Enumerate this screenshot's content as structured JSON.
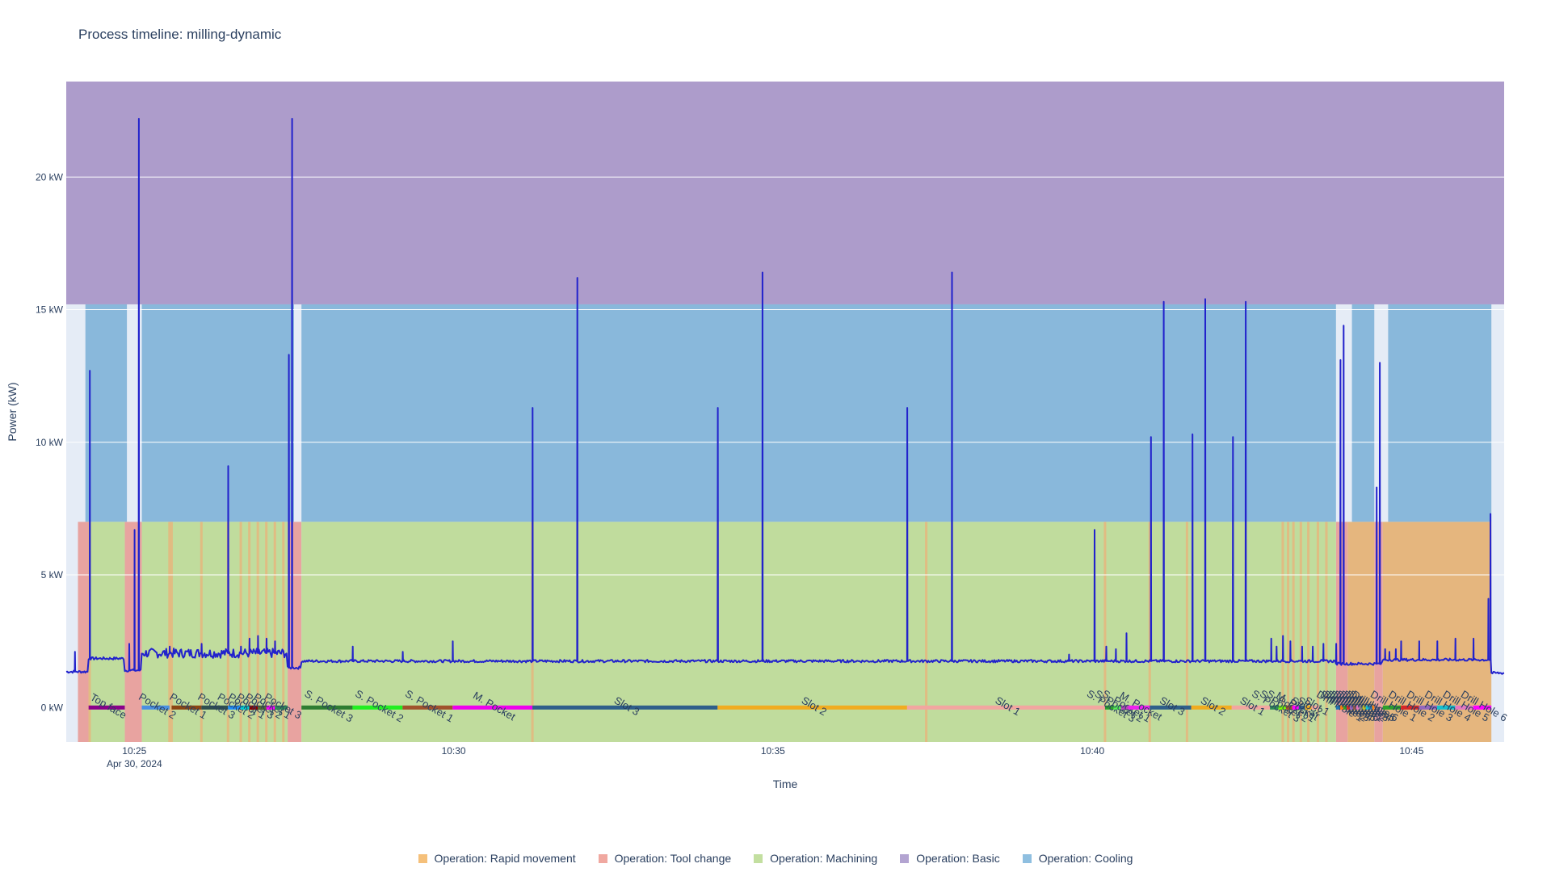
{
  "chart_data": {
    "type": "line",
    "title": "Process timeline: milling-dynamic",
    "xlabel": "Time",
    "ylabel": "Power (kW)",
    "x_start": "2024-04-30 10:23:56",
    "x_end": "2024-04-30 10:46:27",
    "xlim": [
      "2024-04-30 10:23:56",
      "2024-04-30 10:46:27"
    ],
    "ylim": [
      -1.3,
      23.6
    ],
    "x_ticks": [
      {
        "time": "2024-04-30 10:25:00",
        "label": "10:25",
        "sublabel": "Apr 30, 2024"
      },
      {
        "time": "2024-04-30 10:30:00",
        "label": "10:30"
      },
      {
        "time": "2024-04-30 10:35:00",
        "label": "10:35"
      },
      {
        "time": "2024-04-30 10:40:00",
        "label": "10:40"
      },
      {
        "time": "2024-04-30 10:45:00",
        "label": "10:45"
      }
    ],
    "y_ticks": [
      {
        "value": 0,
        "label": "0 kW"
      },
      {
        "value": 5,
        "label": "5 kW"
      },
      {
        "value": 10,
        "label": "10 kW"
      },
      {
        "value": 15,
        "label": "15 kW"
      },
      {
        "value": 20,
        "label": "20 kW"
      }
    ],
    "grid": true,
    "legend_position": "bottom",
    "legend": [
      {
        "label": "Operation: Rapid movement",
        "color": "#f5c07a"
      },
      {
        "label": "Operation: Tool change",
        "color": "#f0a8a0"
      },
      {
        "label": "Operation: Machining",
        "color": "#c3dfa0"
      },
      {
        "label": "Operation: Basic",
        "color": "#b3a4d1"
      },
      {
        "label": "Operation: Cooling",
        "color": "#8fbfe0"
      }
    ],
    "colors": {
      "plot_bg": "#e5ecf6",
      "basic": "#ad9ccb",
      "cooling": "#89b8db",
      "machining": "#c0dc9d",
      "tool_change": "#e8a3a0",
      "rapid_movement": "#e5b67e",
      "power_line": "#2222cc"
    },
    "bands": [
      {
        "operation": "Basic",
        "y0": 15.2,
        "y1": 23.6,
        "x0": "2024-04-30 10:23:56",
        "x1": "2024-04-30 10:46:27"
      },
      {
        "operation": "Cooling",
        "y0": 7.0,
        "y1": 15.2,
        "x0": "2024-04-30 10:24:14",
        "x1": "2024-04-30 10:24:53"
      },
      {
        "operation": "Cooling",
        "y0": 7.0,
        "y1": 15.2,
        "x0": "2024-04-30 10:25:07",
        "x1": "2024-04-30 10:27:30"
      },
      {
        "operation": "Cooling",
        "y0": 7.0,
        "y1": 15.2,
        "x0": "2024-04-30 10:27:37",
        "x1": "2024-04-30 10:43:49"
      },
      {
        "operation": "Cooling",
        "y0": 7.0,
        "y1": 15.2,
        "x0": "2024-04-30 10:44:04",
        "x1": "2024-04-30 10:44:25"
      },
      {
        "operation": "Cooling",
        "y0": 7.0,
        "y1": 15.2,
        "x0": "2024-04-30 10:44:38",
        "x1": "2024-04-30 10:46:15"
      },
      {
        "operation": "Tool change",
        "y0": -1.3,
        "y1": 7.0,
        "x0": "2024-04-30 10:24:07",
        "x1": "2024-04-30 10:24:17"
      },
      {
        "operation": "Tool change",
        "y0": -1.3,
        "y1": 7.0,
        "x0": "2024-04-30 10:24:51",
        "x1": "2024-04-30 10:25:07"
      },
      {
        "operation": "Tool change",
        "y0": -1.3,
        "y1": 7.0,
        "x0": "2024-04-30 10:27:24",
        "x1": "2024-04-30 10:27:37"
      },
      {
        "operation": "Tool change",
        "y0": -1.3,
        "y1": 7.0,
        "x0": "2024-04-30 10:43:49",
        "x1": "2024-04-30 10:44:00"
      },
      {
        "operation": "Tool change",
        "y0": -1.3,
        "y1": 7.0,
        "x0": "2024-04-30 10:44:25",
        "x1": "2024-04-30 10:44:33"
      },
      {
        "operation": "Machining",
        "y0": -1.3,
        "y1": 7.0,
        "x0": "2024-04-30 10:24:17",
        "x1": "2024-04-30 10:24:51"
      },
      {
        "operation": "Machining",
        "y0": -1.3,
        "y1": 7.0,
        "x0": "2024-04-30 10:25:07",
        "x1": "2024-04-30 10:27:24"
      },
      {
        "operation": "Machining",
        "y0": -1.3,
        "y1": 7.0,
        "x0": "2024-04-30 10:27:37",
        "x1": "2024-04-30 10:43:49"
      },
      {
        "operation": "Rapid movement",
        "y0": -1.3,
        "y1": 7.0,
        "x0": "2024-04-30 10:44:00",
        "x1": "2024-04-30 10:44:25"
      },
      {
        "operation": "Rapid movement",
        "y0": -1.3,
        "y1": 7.0,
        "x0": "2024-04-30 10:44:33",
        "x1": "2024-04-30 10:46:15"
      }
    ],
    "rapid_movement_times": [
      "2024-04-30 10:24:18",
      "2024-04-30 10:25:33",
      "2024-04-30 10:25:35",
      "2024-04-30 10:26:03",
      "2024-04-30 10:26:28",
      "2024-04-30 10:26:40",
      "2024-04-30 10:26:48",
      "2024-04-30 10:26:56",
      "2024-04-30 10:27:04",
      "2024-04-30 10:27:12",
      "2024-04-30 10:27:20",
      "2024-04-30 10:31:14",
      "2024-04-30 10:37:24",
      "2024-04-30 10:40:12",
      "2024-04-30 10:40:54",
      "2024-04-30 10:41:29",
      "2024-04-30 10:42:59",
      "2024-04-30 10:43:04",
      "2024-04-30 10:43:09",
      "2024-04-30 10:43:16",
      "2024-04-30 10:43:23",
      "2024-04-30 10:43:32",
      "2024-04-30 10:43:40"
    ],
    "segments": [
      {
        "label": "Top face",
        "x0": "2024-04-30 10:24:17",
        "x1": "2024-04-30 10:24:51",
        "color": "#8b008b"
      },
      {
        "label": "Pocket 2",
        "x0": "2024-04-30 10:25:07",
        "x1": "2024-04-30 10:25:33",
        "color": "#4a90e2"
      },
      {
        "label": "Pocket 1",
        "x0": "2024-04-30 10:25:35",
        "x1": "2024-04-30 10:26:03",
        "color": "#8b4513"
      },
      {
        "label": "Pocket 3",
        "x0": "2024-04-30 10:26:03",
        "x1": "2024-04-30 10:26:28",
        "color": "#2f4f4f"
      },
      {
        "label": "Pocket 2",
        "x0": "2024-04-30 10:26:28",
        "x1": "2024-04-30 10:26:40",
        "color": "#1e90ff"
      },
      {
        "label": "Pocket 1",
        "x0": "2024-04-30 10:26:40",
        "x1": "2024-04-30 10:26:48",
        "color": "#00ced1"
      },
      {
        "label": "Pocket 3",
        "x0": "2024-04-30 10:26:48",
        "x1": "2024-04-30 10:26:56",
        "color": "#8b0000"
      },
      {
        "label": "Pocket 2",
        "x0": "2024-04-30 10:26:56",
        "x1": "2024-04-30 10:27:04",
        "color": "#556b2f"
      },
      {
        "label": "Pocket 1",
        "x0": "2024-04-30 10:27:04",
        "x1": "2024-04-30 10:27:12",
        "color": "#ff00ff"
      },
      {
        "label": "Pocket 3",
        "x0": "2024-04-30 10:27:12",
        "x1": "2024-04-30 10:27:24",
        "color": "#2e8b57"
      },
      {
        "label": "S. Pocket 3",
        "x0": "2024-04-30 10:27:37",
        "x1": "2024-04-30 10:28:25",
        "color": "#2e7d32"
      },
      {
        "label": "S. Pocket 2",
        "x0": "2024-04-30 10:28:25",
        "x1": "2024-04-30 10:29:12",
        "color": "#22ee22"
      },
      {
        "label": "S. Pocket 1",
        "x0": "2024-04-30 10:29:12",
        "x1": "2024-04-30 10:29:59",
        "color": "#a0522d"
      },
      {
        "label": "M. Pocket",
        "x0": "2024-04-30 10:29:59",
        "x1": "2024-04-30 10:31:14",
        "color": "#ee00ee"
      },
      {
        "label": "Slot 3",
        "x0": "2024-04-30 10:31:14",
        "x1": "2024-04-30 10:34:08",
        "color": "#2f5f8a"
      },
      {
        "label": "Slot 2",
        "x0": "2024-04-30 10:34:08",
        "x1": "2024-04-30 10:37:06",
        "color": "#f0ac20"
      },
      {
        "label": "Slot 1",
        "x0": "2024-04-30 10:37:06",
        "x1": "2024-04-30 10:40:12",
        "color": "#f2a6a0"
      },
      {
        "label": "S. Pocket 3",
        "x0": "2024-04-30 10:40:12",
        "x1": "2024-04-30 10:40:20",
        "color": "#2ca02c"
      },
      {
        "label": "S. Pocket 2",
        "x0": "2024-04-30 10:40:20",
        "x1": "2024-04-30 10:40:27",
        "color": "#55ee55"
      },
      {
        "label": "S. Pocket 1",
        "x0": "2024-04-30 10:40:27",
        "x1": "2024-04-30 10:40:34",
        "color": "#bb44bb"
      },
      {
        "label": "M. Pocket",
        "x0": "2024-04-30 10:40:34",
        "x1": "2024-04-30 10:40:54",
        "color": "#ee22ee"
      },
      {
        "label": "Slot 3",
        "x0": "2024-04-30 10:40:54",
        "x1": "2024-04-30 10:41:33",
        "color": "#2f5f8a"
      },
      {
        "label": "Slot 2",
        "x0": "2024-04-30 10:41:33",
        "x1": "2024-04-30 10:42:11",
        "color": "#f0ac20"
      },
      {
        "label": "Slot 1",
        "x0": "2024-04-30 10:42:11",
        "x1": "2024-04-30 10:42:47",
        "color": "#f2a6a0"
      },
      {
        "label": "S. Pocket 3",
        "x0": "2024-04-30 10:42:47",
        "x1": "2024-04-30 10:42:55",
        "color": "#2e8b57"
      },
      {
        "label": "S. Pocket 2",
        "x0": "2024-04-30 10:42:55",
        "x1": "2024-04-30 10:43:02",
        "color": "#7cfc00"
      },
      {
        "label": "S. Pocket 1",
        "x0": "2024-04-30 10:43:02",
        "x1": "2024-04-30 10:43:08",
        "color": "#a0522d"
      },
      {
        "label": "M. Pocket",
        "x0": "2024-04-30 10:43:08",
        "x1": "2024-04-30 10:43:14",
        "color": "#ff00ff"
      },
      {
        "label": "Slot 3",
        "x0": "2024-04-30 10:43:14",
        "x1": "2024-04-30 10:43:20",
        "color": "#2f5f8a"
      },
      {
        "label": "Slot 2",
        "x0": "2024-04-30 10:43:20",
        "x1": "2024-04-30 10:43:26",
        "color": "#f0ac20"
      },
      {
        "label": "Slot 1",
        "x0": "2024-04-30 10:43:26",
        "x1": "2024-04-30 10:43:33",
        "color": "#f2a6a0"
      },
      {
        "label": "Drill Hole 1",
        "x0": "2024-04-30 10:43:49",
        "x1": "2024-04-30 10:43:53",
        "color": "#1f77b4"
      },
      {
        "label": "Drill Hole 2",
        "x0": "2024-04-30 10:43:53",
        "x1": "2024-04-30 10:43:56",
        "color": "#ff7f0e"
      },
      {
        "label": "Drill Hole 3",
        "x0": "2024-04-30 10:43:56",
        "x1": "2024-04-30 10:43:59",
        "color": "#2ca02c"
      },
      {
        "label": "Drill Hole 4",
        "x0": "2024-04-30 10:43:59",
        "x1": "2024-04-30 10:44:02",
        "color": "#d62728"
      },
      {
        "label": "Drill Hole 5",
        "x0": "2024-04-30 10:44:02",
        "x1": "2024-04-30 10:44:05",
        "color": "#9467bd"
      },
      {
        "label": "Drill Hole 6",
        "x0": "2024-04-30 10:44:05",
        "x1": "2024-04-30 10:44:08",
        "color": "#8c564b"
      },
      {
        "label": "Drill Hole 1",
        "x0": "2024-04-30 10:44:08",
        "x1": "2024-04-30 10:44:11",
        "color": "#e377c2"
      },
      {
        "label": "Drill Hole 2",
        "x0": "2024-04-30 10:44:11",
        "x1": "2024-04-30 10:44:14",
        "color": "#7f7f7f"
      },
      {
        "label": "Drill Hole 3",
        "x0": "2024-04-30 10:44:14",
        "x1": "2024-04-30 10:44:17",
        "color": "#bcbd22"
      },
      {
        "label": "Drill Hole 4",
        "x0": "2024-04-30 10:44:17",
        "x1": "2024-04-30 10:44:20",
        "color": "#17becf"
      },
      {
        "label": "Drill Hole 5",
        "x0": "2024-04-30 10:44:20",
        "x1": "2024-04-30 10:44:23",
        "color": "#1f77b4"
      },
      {
        "label": "Drill Hole 6",
        "x0": "2024-04-30 10:44:23",
        "x1": "2024-04-30 10:44:25",
        "color": "#ff7f0e"
      },
      {
        "label": "Drill Hole 1",
        "x0": "2024-04-30 10:44:33",
        "x1": "2024-04-30 10:44:50",
        "color": "#2ca02c"
      },
      {
        "label": "Drill Hole 2",
        "x0": "2024-04-30 10:44:50",
        "x1": "2024-04-30 10:45:07",
        "color": "#d62728"
      },
      {
        "label": "Drill Hole 3",
        "x0": "2024-04-30 10:45:07",
        "x1": "2024-04-30 10:45:24",
        "color": "#9467bd"
      },
      {
        "label": "Drill Hole 4",
        "x0": "2024-04-30 10:45:24",
        "x1": "2024-04-30 10:45:41",
        "color": "#17becf"
      },
      {
        "label": "Drill Hole 5",
        "x0": "2024-04-30 10:45:41",
        "x1": "2024-04-30 10:45:58",
        "color": "#e377c2"
      },
      {
        "label": "Drill Hole 6",
        "x0": "2024-04-30 10:45:58",
        "x1": "2024-04-30 10:46:15",
        "color": "#ff00ff"
      }
    ],
    "power_series": {
      "name": "Power",
      "baseline_segments": [
        {
          "x0": "2024-04-30 10:23:56",
          "x1": "2024-04-30 10:24:17",
          "value": 1.35
        },
        {
          "x0": "2024-04-30 10:24:17",
          "x1": "2024-04-30 10:24:51",
          "value": 1.85
        },
        {
          "x0": "2024-04-30 10:24:51",
          "x1": "2024-04-30 10:25:07",
          "value": 1.4
        },
        {
          "x0": "2024-04-30 10:25:07",
          "x1": "2024-04-30 10:27:24",
          "value": 2.05
        },
        {
          "x0": "2024-04-30 10:27:24",
          "x1": "2024-04-30 10:27:37",
          "value": 1.5
        },
        {
          "x0": "2024-04-30 10:27:37",
          "x1": "2024-04-30 10:43:49",
          "value": 1.75
        },
        {
          "x0": "2024-04-30 10:43:49",
          "x1": "2024-04-30 10:44:33",
          "value": 1.65
        },
        {
          "x0": "2024-04-30 10:44:33",
          "x1": "2024-04-30 10:46:15",
          "value": 1.8
        },
        {
          "x0": "2024-04-30 10:46:15",
          "x1": "2024-04-30 10:46:27",
          "value": 1.3
        }
      ],
      "spikes": [
        {
          "x": "2024-04-30 10:24:04",
          "y": 2.1
        },
        {
          "x": "2024-04-30 10:24:18",
          "y": 12.7
        },
        {
          "x": "2024-04-30 10:24:55",
          "y": 2.4
        },
        {
          "x": "2024-04-30 10:25:00",
          "y": 6.7
        },
        {
          "x": "2024-04-30 10:25:04",
          "y": 22.2
        },
        {
          "x": "2024-04-30 10:25:33",
          "y": 2.3
        },
        {
          "x": "2024-04-30 10:26:03",
          "y": 2.4
        },
        {
          "x": "2024-04-30 10:26:28",
          "y": 9.1
        },
        {
          "x": "2024-04-30 10:26:40",
          "y": 2.3
        },
        {
          "x": "2024-04-30 10:26:48",
          "y": 2.6
        },
        {
          "x": "2024-04-30 10:26:56",
          "y": 2.7
        },
        {
          "x": "2024-04-30 10:27:04",
          "y": 2.6
        },
        {
          "x": "2024-04-30 10:27:12",
          "y": 2.5
        },
        {
          "x": "2024-04-30 10:27:25",
          "y": 13.3
        },
        {
          "x": "2024-04-30 10:27:28",
          "y": 22.2
        },
        {
          "x": "2024-04-30 10:28:25",
          "y": 2.3
        },
        {
          "x": "2024-04-30 10:29:12",
          "y": 2.1
        },
        {
          "x": "2024-04-30 10:29:59",
          "y": 2.5
        },
        {
          "x": "2024-04-30 10:31:14",
          "y": 11.3
        },
        {
          "x": "2024-04-30 10:31:56",
          "y": 16.2
        },
        {
          "x": "2024-04-30 10:34:08",
          "y": 11.3
        },
        {
          "x": "2024-04-30 10:34:50",
          "y": 16.4
        },
        {
          "x": "2024-04-30 10:37:06",
          "y": 11.3
        },
        {
          "x": "2024-04-30 10:37:48",
          "y": 16.4
        },
        {
          "x": "2024-04-30 10:39:38",
          "y": 2.0
        },
        {
          "x": "2024-04-30 10:40:02",
          "y": 6.7
        },
        {
          "x": "2024-04-30 10:40:13",
          "y": 2.3
        },
        {
          "x": "2024-04-30 10:40:22",
          "y": 2.2
        },
        {
          "x": "2024-04-30 10:40:32",
          "y": 2.8
        },
        {
          "x": "2024-04-30 10:40:55",
          "y": 10.2
        },
        {
          "x": "2024-04-30 10:41:07",
          "y": 15.3
        },
        {
          "x": "2024-04-30 10:41:34",
          "y": 10.3
        },
        {
          "x": "2024-04-30 10:41:46",
          "y": 15.4
        },
        {
          "x": "2024-04-30 10:42:12",
          "y": 10.2
        },
        {
          "x": "2024-04-30 10:42:24",
          "y": 15.3
        },
        {
          "x": "2024-04-30 10:42:48",
          "y": 2.6
        },
        {
          "x": "2024-04-30 10:42:53",
          "y": 2.3
        },
        {
          "x": "2024-04-30 10:42:59",
          "y": 2.7
        },
        {
          "x": "2024-04-30 10:43:06",
          "y": 2.5
        },
        {
          "x": "2024-04-30 10:43:17",
          "y": 2.3
        },
        {
          "x": "2024-04-30 10:43:27",
          "y": 2.3
        },
        {
          "x": "2024-04-30 10:43:37",
          "y": 2.4
        },
        {
          "x": "2024-04-30 10:43:49",
          "y": 2.4
        },
        {
          "x": "2024-04-30 10:43:53",
          "y": 13.1
        },
        {
          "x": "2024-04-30 10:43:56",
          "y": 14.4
        },
        {
          "x": "2024-04-30 10:44:27",
          "y": 8.3
        },
        {
          "x": "2024-04-30 10:44:30",
          "y": 13.0
        },
        {
          "x": "2024-04-30 10:44:35",
          "y": 2.2
        },
        {
          "x": "2024-04-30 10:44:39",
          "y": 2.1
        },
        {
          "x": "2024-04-30 10:44:45",
          "y": 2.2
        },
        {
          "x": "2024-04-30 10:44:50",
          "y": 2.5
        },
        {
          "x": "2024-04-30 10:45:07",
          "y": 2.5
        },
        {
          "x": "2024-04-30 10:45:24",
          "y": 2.5
        },
        {
          "x": "2024-04-30 10:45:41",
          "y": 2.6
        },
        {
          "x": "2024-04-30 10:45:58",
          "y": 2.6
        },
        {
          "x": "2024-04-30 10:46:12",
          "y": 4.1
        },
        {
          "x": "2024-04-30 10:46:14",
          "y": 7.3
        }
      ]
    }
  }
}
